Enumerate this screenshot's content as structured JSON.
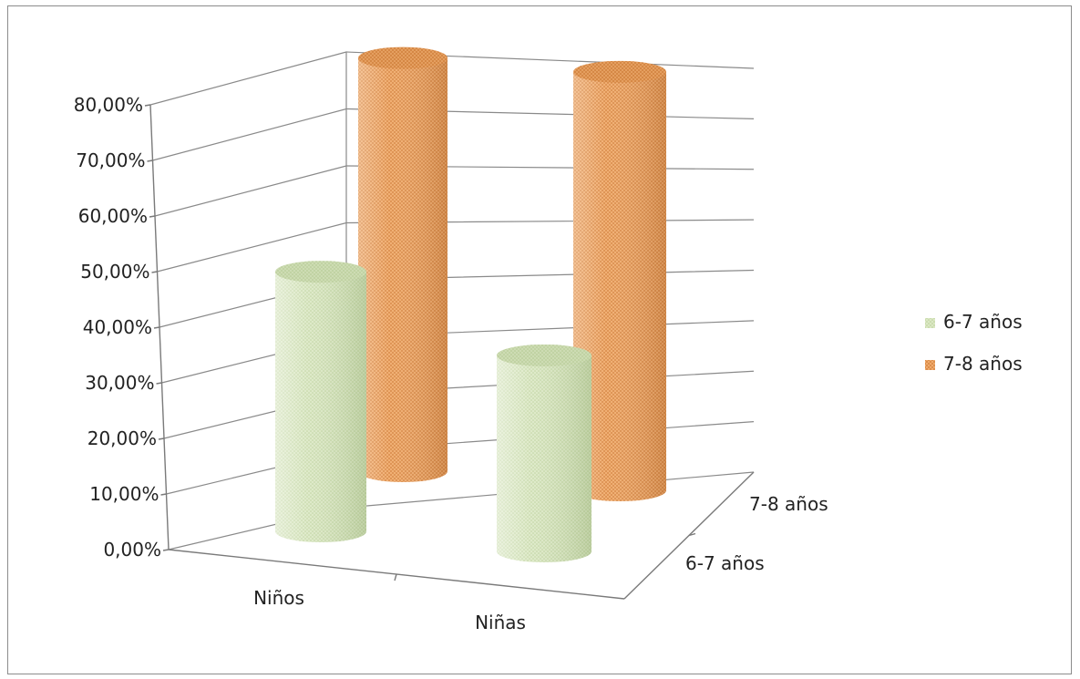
{
  "chart_data": {
    "type": "bar",
    "style": "3d-cylinder",
    "categories": [
      "Niños",
      "Niñas"
    ],
    "depth_categories": [
      "6-7 años",
      "7-8 años"
    ],
    "series": [
      {
        "name": "6-7 años",
        "values": [
          0.49,
          0.37
        ],
        "color": "#d3e3b8"
      },
      {
        "name": "7-8 años",
        "values": [
          0.78,
          0.79
        ],
        "color": "#e59a56"
      }
    ],
    "ylim": [
      0,
      0.8
    ],
    "yticks": [
      "0,00%",
      "10,00%",
      "20,00%",
      "30,00%",
      "40,00%",
      "50,00%",
      "60,00%",
      "70,00%",
      "80,00%"
    ],
    "grid": true,
    "legend": {
      "position": "right",
      "entries": [
        "6-7 años",
        "7-8 años"
      ]
    }
  }
}
